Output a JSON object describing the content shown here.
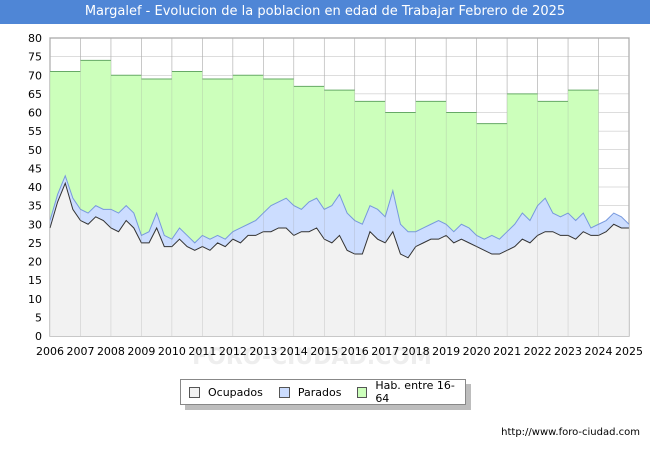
{
  "title": "Margalef - Evolucion de la poblacion en edad de Trabajar Febrero de 2025",
  "source": "http://www.foro-ciudad.com",
  "watermark": "FORO-CIUDAD.COM",
  "colors": {
    "title_bg": "#4f86d6",
    "hab_fill": "#ccffbb",
    "hab_line": "#66aa66",
    "parados_fill": "#ccddff",
    "parados_line": "#7799dd",
    "ocupados_fill": "#f2f2f2",
    "ocupados_line": "#333333",
    "grid": "#bbbbbb"
  },
  "legend": [
    {
      "label": "Ocupados",
      "color": "#f2f2f2"
    },
    {
      "label": "Parados",
      "color": "#ccddff"
    },
    {
      "label": "Hab. entre 16-64",
      "color": "#ccffbb"
    }
  ],
  "chart_data": {
    "type": "area",
    "title": "Margalef - Evolucion de la poblacion en edad de Trabajar Febrero de 2025",
    "xlabel": "",
    "ylabel": "",
    "xlim": [
      2006,
      2025
    ],
    "ylim": [
      0,
      80
    ],
    "yticks": [
      0,
      5,
      10,
      15,
      20,
      25,
      30,
      35,
      40,
      45,
      50,
      55,
      60,
      65,
      70,
      75,
      80
    ],
    "xticks": [
      2006,
      2007,
      2008,
      2009,
      2010,
      2011,
      2012,
      2013,
      2014,
      2015,
      2016,
      2017,
      2018,
      2019,
      2020,
      2021,
      2022,
      2023,
      2024,
      2025
    ],
    "grid": true,
    "series": [
      {
        "name": "Hab. entre 16-64",
        "note": "annual step values (year start)",
        "x": [
          2006,
          2007,
          2008,
          2009,
          2010,
          2011,
          2012,
          2013,
          2014,
          2015,
          2016,
          2017,
          2018,
          2019,
          2020,
          2021,
          2022,
          2023,
          2024
        ],
        "values": [
          71,
          74,
          70,
          69,
          71,
          69,
          70,
          69,
          67,
          66,
          63,
          60,
          63,
          60,
          57,
          65,
          63,
          66,
          null
        ]
      },
      {
        "name": "Parados",
        "note": "ocupados + parados, monthly approx",
        "x": [
          2006.0,
          2006.25,
          2006.5,
          2006.75,
          2007.0,
          2007.25,
          2007.5,
          2007.75,
          2008.0,
          2008.25,
          2008.5,
          2008.75,
          2009.0,
          2009.25,
          2009.5,
          2009.75,
          2010.0,
          2010.25,
          2010.5,
          2010.75,
          2011.0,
          2011.25,
          2011.5,
          2011.75,
          2012.0,
          2012.25,
          2012.5,
          2012.75,
          2013.0,
          2013.25,
          2013.5,
          2013.75,
          2014.0,
          2014.25,
          2014.5,
          2014.75,
          2015.0,
          2015.25,
          2015.5,
          2015.75,
          2016.0,
          2016.25,
          2016.5,
          2016.75,
          2017.0,
          2017.25,
          2017.5,
          2017.75,
          2018.0,
          2018.25,
          2018.5,
          2018.75,
          2019.0,
          2019.25,
          2019.5,
          2019.75,
          2020.0,
          2020.25,
          2020.5,
          2020.75,
          2021.0,
          2021.25,
          2021.5,
          2021.75,
          2022.0,
          2022.25,
          2022.5,
          2022.75,
          2023.0,
          2023.25,
          2023.5,
          2023.75,
          2024.0,
          2024.25,
          2024.5,
          2024.75,
          2025.0
        ],
        "values": [
          31,
          38,
          43,
          37,
          34,
          33,
          35,
          34,
          34,
          33,
          35,
          33,
          27,
          28,
          33,
          27,
          26,
          29,
          27,
          25,
          27,
          26,
          27,
          26,
          28,
          29,
          30,
          31,
          33,
          35,
          36,
          37,
          35,
          34,
          36,
          37,
          34,
          35,
          38,
          33,
          31,
          30,
          35,
          34,
          32,
          39,
          30,
          28,
          28,
          29,
          30,
          31,
          30,
          28,
          30,
          29,
          27,
          26,
          27,
          26,
          28,
          30,
          33,
          31,
          35,
          37,
          33,
          32,
          33,
          31,
          33,
          29,
          30,
          31,
          33,
          32,
          30
        ]
      },
      {
        "name": "Ocupados",
        "note": "monthly approx",
        "x": [
          2006.0,
          2006.25,
          2006.5,
          2006.75,
          2007.0,
          2007.25,
          2007.5,
          2007.75,
          2008.0,
          2008.25,
          2008.5,
          2008.75,
          2009.0,
          2009.25,
          2009.5,
          2009.75,
          2010.0,
          2010.25,
          2010.5,
          2010.75,
          2011.0,
          2011.25,
          2011.5,
          2011.75,
          2012.0,
          2012.25,
          2012.5,
          2012.75,
          2013.0,
          2013.25,
          2013.5,
          2013.75,
          2014.0,
          2014.25,
          2014.5,
          2014.75,
          2015.0,
          2015.25,
          2015.5,
          2015.75,
          2016.0,
          2016.25,
          2016.5,
          2016.75,
          2017.0,
          2017.25,
          2017.5,
          2017.75,
          2018.0,
          2018.25,
          2018.5,
          2018.75,
          2019.0,
          2019.25,
          2019.5,
          2019.75,
          2020.0,
          2020.25,
          2020.5,
          2020.75,
          2021.0,
          2021.25,
          2021.5,
          2021.75,
          2022.0,
          2022.25,
          2022.5,
          2022.75,
          2023.0,
          2023.25,
          2023.5,
          2023.75,
          2024.0,
          2024.25,
          2024.5,
          2024.75,
          2025.0
        ],
        "values": [
          29,
          36,
          41,
          34,
          31,
          30,
          32,
          31,
          29,
          28,
          31,
          29,
          25,
          25,
          29,
          24,
          24,
          26,
          24,
          23,
          24,
          23,
          25,
          24,
          26,
          25,
          27,
          27,
          28,
          28,
          29,
          29,
          27,
          28,
          28,
          29,
          26,
          25,
          27,
          23,
          22,
          22,
          28,
          26,
          25,
          28,
          22,
          21,
          24,
          25,
          26,
          26,
          27,
          25,
          26,
          25,
          24,
          23,
          22,
          22,
          23,
          24,
          26,
          25,
          27,
          28,
          28,
          27,
          27,
          26,
          28,
          27,
          27,
          28,
          30,
          29,
          29
        ]
      }
    ]
  }
}
